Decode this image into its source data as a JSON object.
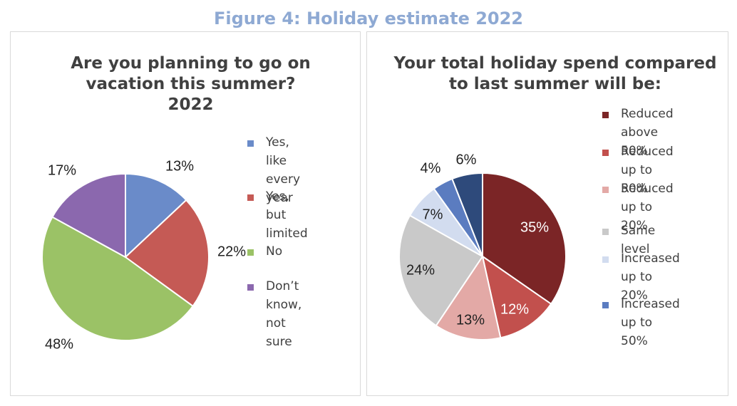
{
  "figure_title": "Figure 4: Holiday estimate 2022",
  "chart_data": [
    {
      "type": "pie",
      "title_lines": [
        "Are you planning to go on",
        "vacation this summer?",
        "2022"
      ],
      "slices": [
        {
          "label": "Yes, like every year",
          "legend_lines": "Yes, like\nevery year",
          "value": 13,
          "data_label": "13%",
          "color": "#6a8bc9"
        },
        {
          "label": "Yes, but limited",
          "legend_lines": "Yes, but\nlimited",
          "value": 22,
          "data_label": "22%",
          "color": "#c55a55"
        },
        {
          "label": "No",
          "legend_lines": "No",
          "value": 48,
          "data_label": "48%",
          "color": "#9bc266"
        },
        {
          "label": "Don’t know, not sure",
          "legend_lines": "Don’t\nknow, not\nsure",
          "value": 17,
          "data_label": "17%",
          "color": "#8b68ae"
        }
      ]
    },
    {
      "type": "pie",
      "title_lines": [
        "Your total holiday spend compared",
        "to last summer will be:"
      ],
      "slices": [
        {
          "label": "Reduced above 50%",
          "legend_lines": "Reduced\nabove 50%",
          "value": 35,
          "data_label": "35%",
          "color": "#7b2526"
        },
        {
          "label": "Reduced up to 50%",
          "legend_lines": "Reduced\nup to 50%",
          "value": 12,
          "data_label": "12%",
          "color": "#c2504d"
        },
        {
          "label": "Reduced up to 20%",
          "legend_lines": "Reduced\nup to 20%",
          "value": 13,
          "data_label": "13%",
          "color": "#e3a9a6"
        },
        {
          "label": "Same level",
          "legend_lines": "Same level",
          "value": 24,
          "data_label": "24%",
          "color": "#c9c9c9"
        },
        {
          "label": "Increased up to 20%",
          "legend_lines": "Increased\nup to 20%",
          "value": 7,
          "data_label": "7%",
          "color": "#d2dcef"
        },
        {
          "label": "Increased up to 50%",
          "legend_lines": "Increased\nup to 50%",
          "value": 4,
          "data_label": "4%",
          "color": "#5b7cc0"
        },
        {
          "label": "",
          "legend_lines": "",
          "value": 6,
          "data_label": "6%",
          "color": "#2e4a7b"
        }
      ]
    }
  ]
}
